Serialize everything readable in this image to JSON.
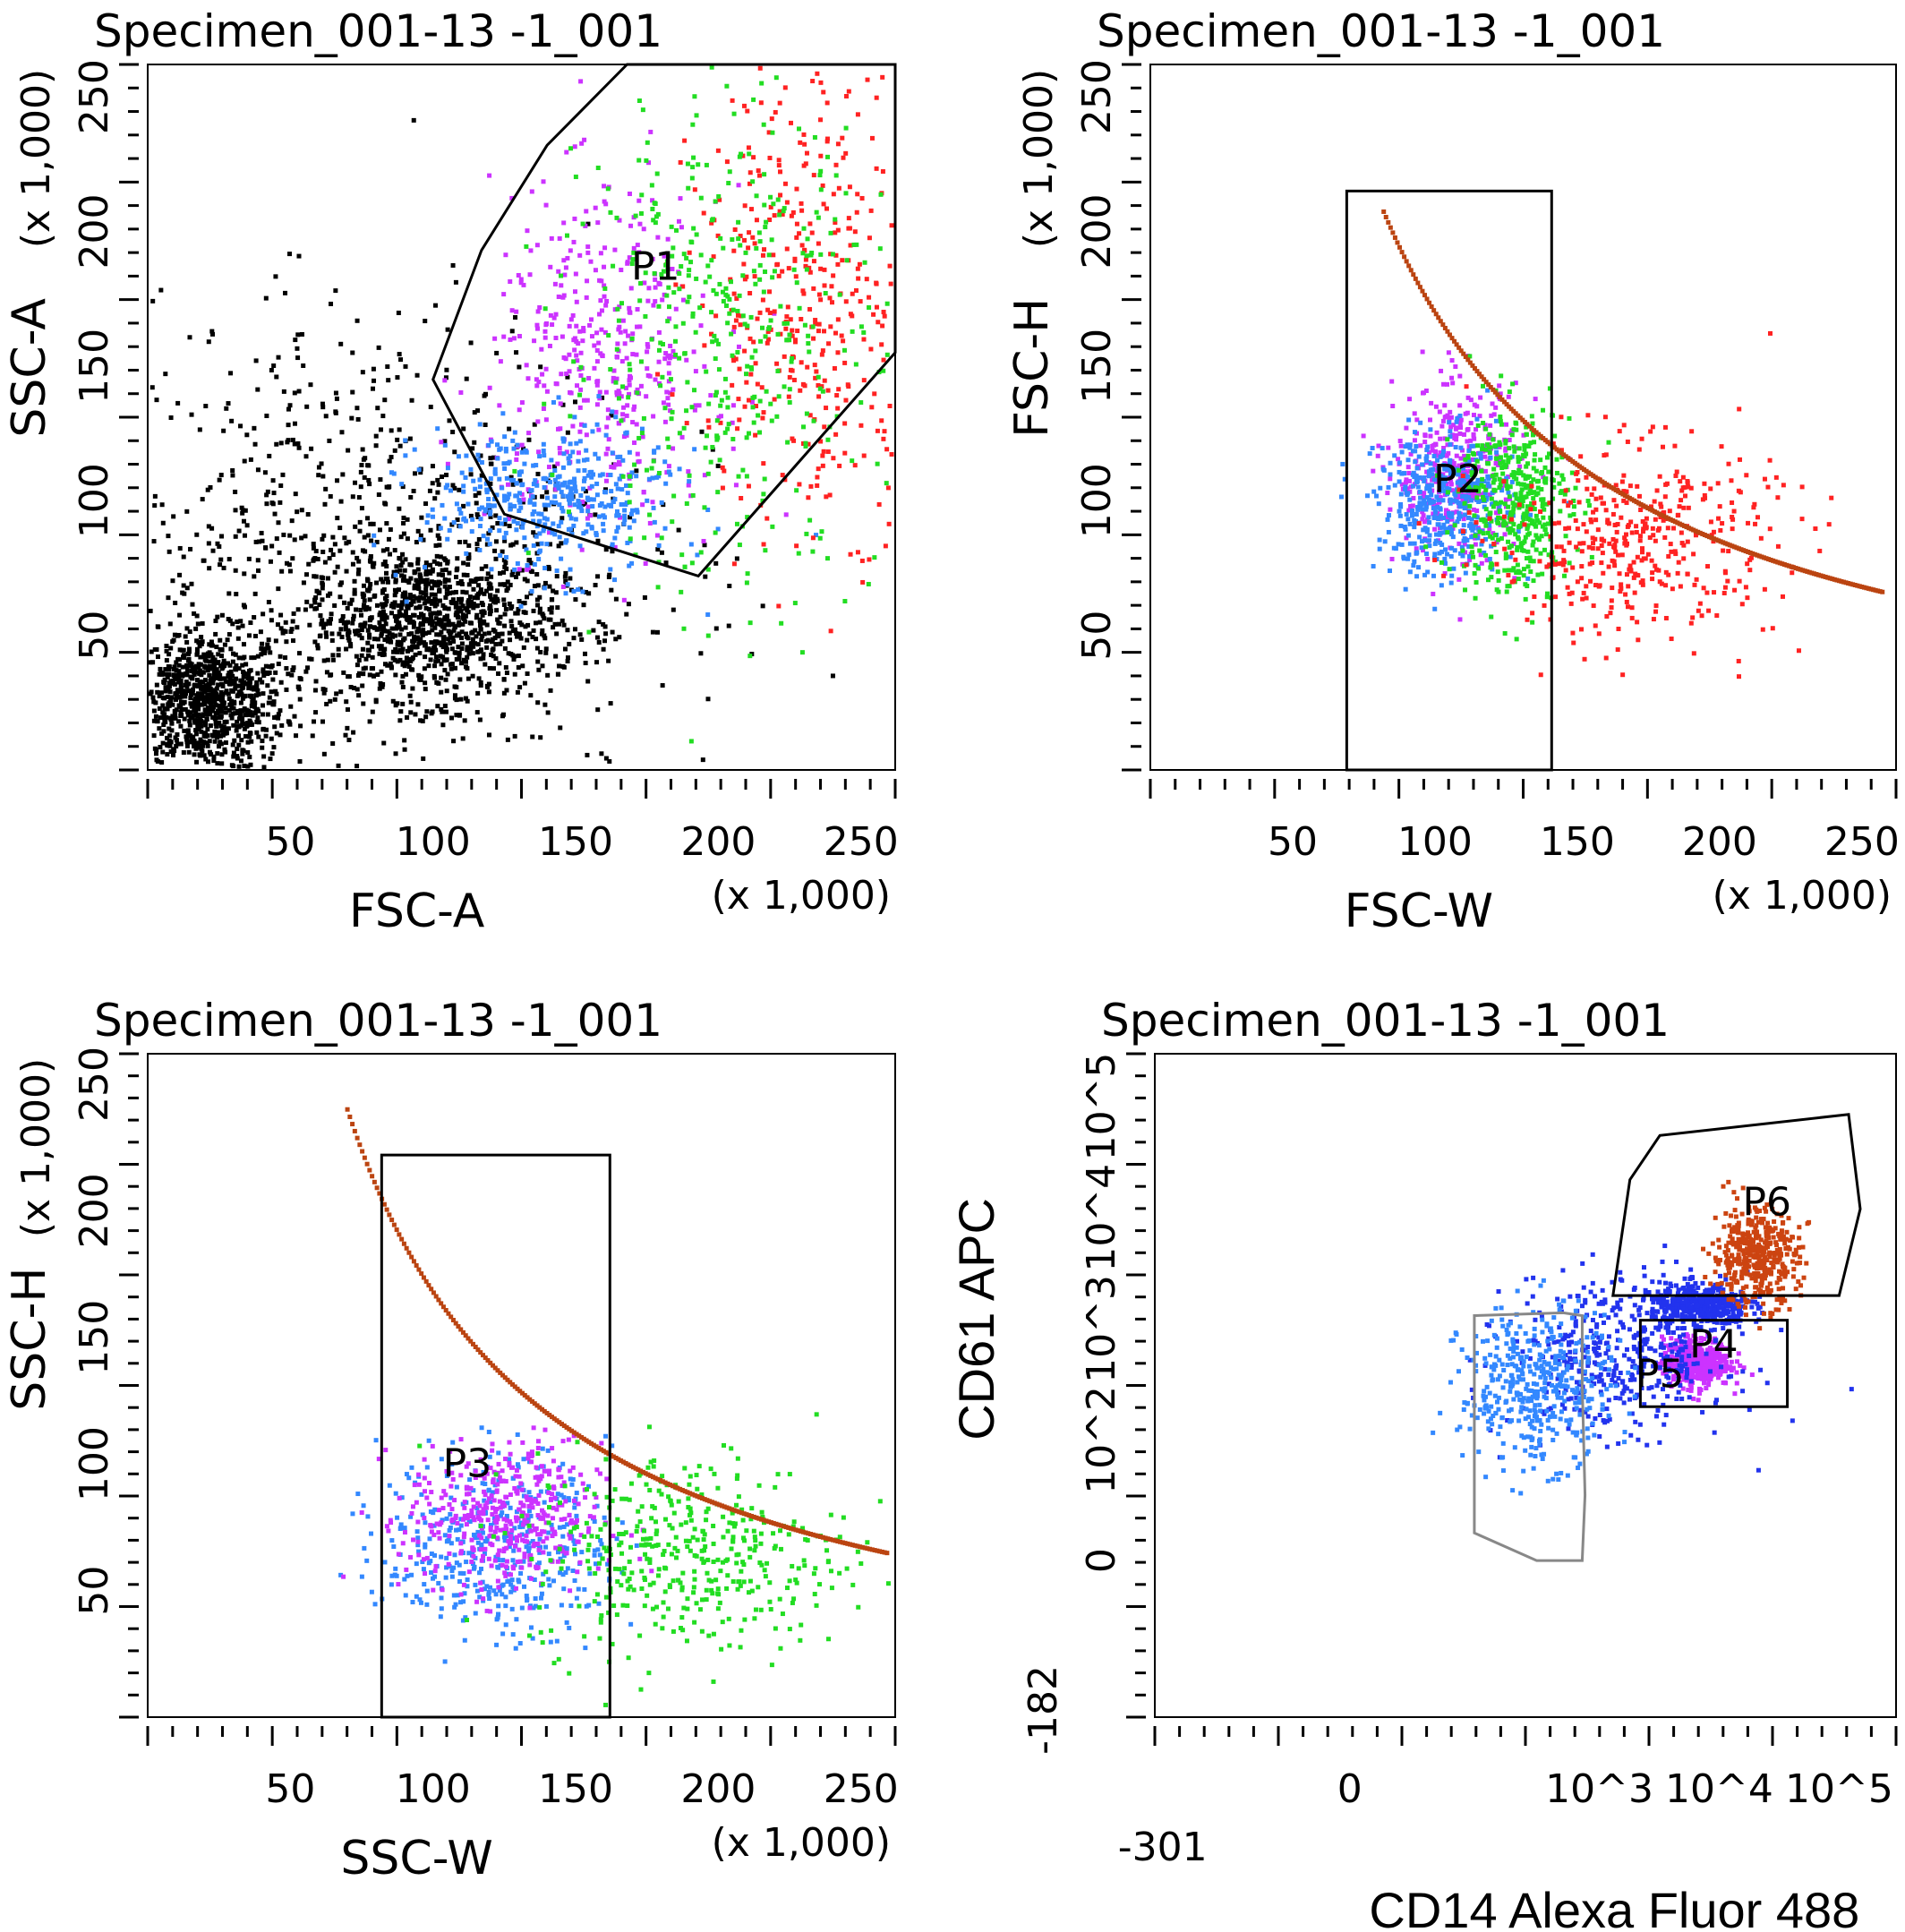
{
  "chart_data": [
    {
      "type": "scatter",
      "title": "Specimen_001-13 -1_001",
      "xlabel": "FSC-A",
      "ylabel": "SSC-A",
      "x_unit": "(x 1,000)",
      "y_unit": "(x 1,000)",
      "xlim": [
        0,
        262
      ],
      "ylim": [
        0,
        262
      ],
      "x_ticks": [
        50,
        100,
        150,
        200,
        250
      ],
      "y_ticks": [
        50,
        100,
        150,
        200,
        250
      ],
      "x_tick_labels": [
        "50",
        "100",
        "150",
        "200",
        "250"
      ],
      "y_tick_labels": [
        "50",
        "100",
        "150",
        "200",
        "250"
      ],
      "gates": [
        {
          "name": "P1",
          "shape": "polygon",
          "label_at": [
            178,
            182
          ],
          "vertices": [
            [
              100,
              145
            ],
            [
              117,
              193
            ],
            [
              140,
              232
            ],
            [
              168,
              262
            ],
            [
              262,
              262
            ],
            [
              262,
              155
            ],
            [
              193,
              72
            ],
            [
              125,
              95
            ]
          ]
        }
      ],
      "populations": [
        {
          "color": "#000000",
          "center": [
            20,
            25
          ],
          "spread": [
            14,
            13
          ]
        },
        {
          "color": "#000000",
          "center": [
            100,
            55
          ],
          "spread": [
            22,
            14
          ]
        },
        {
          "color": "#000000",
          "center": [
            75,
            80
          ],
          "spread": [
            50,
            45
          ]
        },
        {
          "color": "#cc33ff",
          "center": [
            160,
            150
          ],
          "spread": [
            20,
            32
          ]
        },
        {
          "color": "#3388ff",
          "center": [
            140,
            100
          ],
          "spread": [
            22,
            14
          ]
        },
        {
          "color": "#ff2222",
          "center": [
            235,
            175
          ],
          "spread": [
            22,
            42
          ]
        },
        {
          "color": "#22dd22",
          "center": [
            200,
            160
          ],
          "spread": [
            28,
            45
          ]
        }
      ]
    },
    {
      "type": "scatter",
      "title": "Specimen_001-13 -1_001",
      "xlabel": "FSC-W",
      "ylabel": "FSC-H",
      "x_unit": "(x 1,000)",
      "y_unit": "(x 1,000)",
      "xlim": [
        0,
        262
      ],
      "ylim": [
        0,
        262
      ],
      "x_ticks": [
        50,
        100,
        150,
        200,
        250
      ],
      "y_ticks": [
        50,
        100,
        150,
        200,
        250
      ],
      "x_tick_labels": [
        "50",
        "100",
        "150",
        "200",
        "250"
      ],
      "y_tick_labels": [
        "50",
        "100",
        "150",
        "200",
        "250"
      ],
      "gates": [
        {
          "name": "P2",
          "shape": "rect",
          "x": [
            69,
            141
          ],
          "y": [
            0,
            215
          ],
          "label_at": [
            108,
            103
          ]
        }
      ],
      "populations": [
        {
          "color": "#cc33ff",
          "center": [
            108,
            110
          ],
          "spread": [
            11,
            16
          ]
        },
        {
          "color": "#3388ff",
          "center": [
            104,
            98
          ],
          "spread": [
            12,
            13
          ]
        },
        {
          "color": "#22dd22",
          "center": [
            128,
            100
          ],
          "spread": [
            10,
            18
          ]
        },
        {
          "color": "#ff2222",
          "center": [
            170,
            85
          ],
          "spread": [
            25,
            18
          ]
        }
      ],
      "curve": {
        "color": "#bb4411",
        "x_from": 82,
        "x_to": 258,
        "k": 17000
      }
    },
    {
      "type": "scatter",
      "title": "Specimen_001-13 -1_001",
      "xlabel": "SSC-W",
      "ylabel": "SSC-H",
      "x_unit": "(x 1,000)",
      "y_unit": "(x 1,000)",
      "xlim": [
        0,
        262
      ],
      "ylim": [
        0,
        262
      ],
      "x_ticks": [
        50,
        100,
        150,
        200,
        250
      ],
      "y_ticks": [
        50,
        100,
        150,
        200,
        250
      ],
      "x_tick_labels": [
        "50",
        "100",
        "150",
        "200",
        "250"
      ],
      "y_tick_labels": [
        "50",
        "100",
        "150",
        "200",
        "250"
      ],
      "gates": [
        {
          "name": "P3",
          "shape": "rect",
          "x": [
            82,
            162
          ],
          "y": [
            0,
            222
          ],
          "label_at": [
            112,
            95
          ]
        }
      ],
      "populations": [
        {
          "color": "#3388ff",
          "center": [
            122,
            68
          ],
          "spread": [
            20,
            18
          ]
        },
        {
          "color": "#cc33ff",
          "center": [
            125,
            78
          ],
          "spread": [
            17,
            15
          ]
        },
        {
          "color": "#22dd22",
          "center": [
            190,
            65
          ],
          "spread": [
            28,
            20
          ]
        }
      ],
      "curve": {
        "color": "#bb4411",
        "x_from": 70,
        "x_to": 260,
        "k": 16800
      }
    },
    {
      "type": "scatter",
      "title": "Specimen_001-13 -1_001",
      "xlabel": "CD14 Alexa Fluor 488",
      "ylabel": "CD61 APC",
      "x_scale": "biexponential",
      "y_scale": "biexponential",
      "xlim": [
        -301,
        200000
      ],
      "ylim": [
        -182,
        200000
      ],
      "x_tick_labels": [
        "-301",
        "0",
        "10^3",
        "10^4",
        "10^5"
      ],
      "y_tick_labels": [
        "-182",
        "0",
        "10^2",
        "10^3",
        "10^4",
        "10^5"
      ],
      "gates": [
        {
          "name": "P4",
          "shape": "rect",
          "x": [
            2200,
            37000
          ],
          "y": [
            200,
            1200
          ],
          "label_at": [
            9000,
            550
          ]
        },
        {
          "name": "P5",
          "shape": "polygon",
          "label_at": [
            3200,
            300
          ],
          "vertices": [
            [
              90,
              1320
            ],
            [
              500,
              1400
            ],
            [
              720,
              1320
            ],
            [
              720,
              320
            ],
            [
              760,
              30
            ],
            [
              720,
              0
            ],
            [
              300,
              0
            ],
            [
              90,
              10
            ]
          ]
        },
        {
          "name": "P6",
          "shape": "polygon",
          "label_at": [
            25000,
            10500
          ],
          "vertices": [
            [
              1800,
              22000
            ],
            [
              3200,
              55000
            ],
            [
              120000,
              85000
            ],
            [
              150000,
              12000
            ],
            [
              100000,
              2000
            ],
            [
              1300,
              2000
            ]
          ]
        }
      ],
      "populations": [
        {
          "color": "#cc33ff",
          "center": [
            6500,
            500
          ],
          "spread": [
            0.14,
            0.11
          ]
        },
        {
          "color": "#2233ee",
          "center": [
            7000,
            1600
          ],
          "spread": [
            0.2,
            0.1
          ]
        },
        {
          "color": "#2233ee",
          "center": [
            1500,
            600
          ],
          "spread": [
            0.45,
            0.35
          ]
        },
        {
          "color": "#3388ff",
          "center": [
            300,
            300
          ],
          "spread": [
            0.32,
            0.35
          ]
        },
        {
          "color": "#cc4411",
          "center": [
            20000,
            4500
          ],
          "spread": [
            0.18,
            0.22
          ]
        }
      ]
    }
  ]
}
